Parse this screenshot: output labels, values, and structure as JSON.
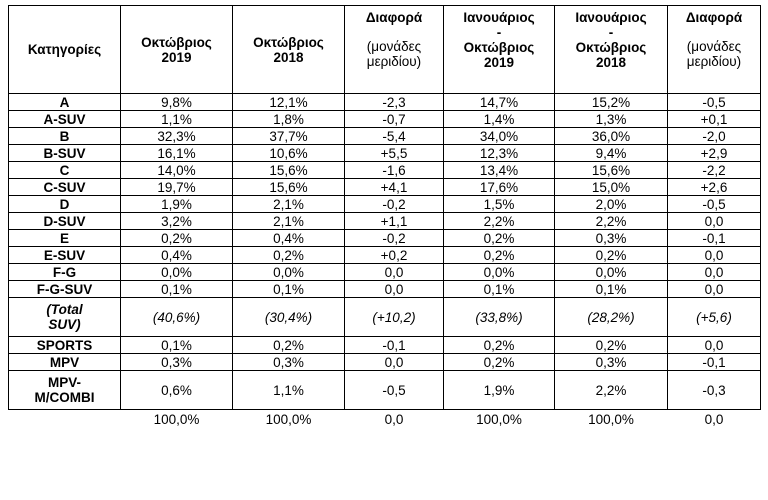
{
  "headers": {
    "category": "Κατηγορίες",
    "oct2019_l1": "Οκτώβριος",
    "oct2019_l2": "2019",
    "oct2018_l1": "Οκτώβριος",
    "oct2018_l2": "2018",
    "diff1_title": "Διαφορά",
    "diff1_sub_l1": "(μονάδες",
    "diff1_sub_l2": "μεριδίου)",
    "ytd2019_l1": "Ιανουάριος",
    "ytd2019_l2": "-",
    "ytd2019_l3": "Οκτώβριος",
    "ytd2019_l4": "2019",
    "ytd2018_l1": "Ιανουάριος",
    "ytd2018_l2": "-",
    "ytd2018_l3": "Οκτώβριος",
    "ytd2018_l4": "2018",
    "diff2_title": "Διαφορά",
    "diff2_sub_l1": "(μονάδες",
    "diff2_sub_l2": "μεριδίου)"
  },
  "rows": [
    {
      "cat": "A",
      "v": [
        "9,8%",
        "12,1%",
        "-2,3",
        "14,7%",
        "15,2%",
        "-0,5"
      ]
    },
    {
      "cat": "A-SUV",
      "v": [
        "1,1%",
        "1,8%",
        "-0,7",
        "1,4%",
        "1,3%",
        "+0,1"
      ]
    },
    {
      "cat": "B",
      "v": [
        "32,3%",
        "37,7%",
        "-5,4",
        "34,0%",
        "36,0%",
        "-2,0"
      ]
    },
    {
      "cat": "B-SUV",
      "v": [
        "16,1%",
        "10,6%",
        "+5,5",
        "12,3%",
        "9,4%",
        "+2,9"
      ]
    },
    {
      "cat": "C",
      "v": [
        "14,0%",
        "15,6%",
        "-1,6",
        "13,4%",
        "15,6%",
        "-2,2"
      ]
    },
    {
      "cat": "C-SUV",
      "v": [
        "19,7%",
        "15,6%",
        "+4,1",
        "17,6%",
        "15,0%",
        "+2,6"
      ]
    },
    {
      "cat": "D",
      "v": [
        "1,9%",
        "2,1%",
        "-0,2",
        "1,5%",
        "2,0%",
        "-0,5"
      ]
    },
    {
      "cat": "D-SUV",
      "v": [
        "3,2%",
        "2,1%",
        "+1,1",
        "2,2%",
        "2,2%",
        "0,0"
      ]
    },
    {
      "cat": "E",
      "v": [
        "0,2%",
        "0,4%",
        "-0,2",
        "0,2%",
        "0,3%",
        "-0,1"
      ]
    },
    {
      "cat": "E-SUV",
      "v": [
        "0,4%",
        "0,2%",
        "+0,2",
        "0,2%",
        "0,2%",
        "0,0"
      ]
    },
    {
      "cat": "F-G",
      "v": [
        "0,0%",
        "0,0%",
        "0,0",
        "0,0%",
        "0,0%",
        "0,0"
      ]
    },
    {
      "cat": "F-G-SUV",
      "v": [
        "0,1%",
        "0,1%",
        "0,0",
        "0,1%",
        "0,1%",
        "0,0"
      ]
    },
    {
      "cat_l1": "(Total",
      "cat_l2": "SUV)",
      "v": [
        "(40,6%)",
        "(30,4%)",
        "(+10,2)",
        "(33,8%)",
        "(28,2%)",
        "(+5,6)"
      ]
    },
    {
      "cat": "SPORTS",
      "v": [
        "0,1%",
        "0,2%",
        "-0,1",
        "0,2%",
        "0,2%",
        "0,0"
      ]
    },
    {
      "cat": "MPV",
      "v": [
        "0,3%",
        "0,3%",
        "0,0",
        "0,2%",
        "0,3%",
        "-0,1"
      ]
    },
    {
      "cat_l1": "MPV-",
      "cat_l2": "M/COMBI",
      "v": [
        "0,6%",
        "1,1%",
        "-0,5",
        "1,9%",
        "2,2%",
        "-0,3"
      ]
    }
  ],
  "totals": [
    "100,0%",
    "100,0%",
    "0,0",
    "100,0%",
    "100,0%",
    "0,0"
  ]
}
